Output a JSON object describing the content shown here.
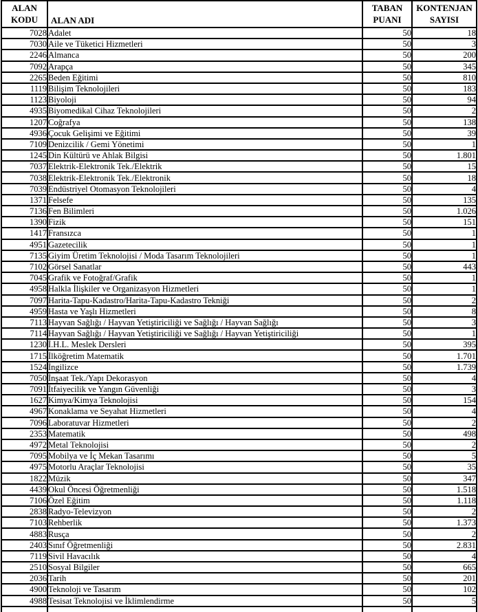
{
  "table": {
    "columns": {
      "alan_kodu": {
        "line1": "ALAN",
        "line2": "KODU"
      },
      "alan_adi": {
        "label": "ALAN ADI"
      },
      "taban_puani": {
        "line1": "TABAN",
        "line2": "PUANI"
      },
      "kontenjan_sayisi": {
        "line1": "KONTENJAN",
        "line2": "SAYISI"
      }
    },
    "rows": [
      {
        "code": "7028",
        "name": "Adalet",
        "score": "50",
        "quota": "18"
      },
      {
        "code": "7030",
        "name": "Aile ve Tüketici Hizmetleri",
        "score": "50",
        "quota": "3"
      },
      {
        "code": "2246",
        "name": "Almanca",
        "score": "50",
        "quota": "200"
      },
      {
        "code": "7092",
        "name": "Arapça",
        "score": "50",
        "quota": "345"
      },
      {
        "code": "2265",
        "name": "Beden Eğitimi",
        "score": "50",
        "quota": "810"
      },
      {
        "code": "1119",
        "name": "Bilişim Teknolojileri",
        "score": "50",
        "quota": "183"
      },
      {
        "code": "1123",
        "name": "Biyoloji",
        "score": "50",
        "quota": "94"
      },
      {
        "code": "4935",
        "name": "Biyomedikal Cihaz Teknolojileri",
        "score": "50",
        "quota": "2"
      },
      {
        "code": "1207",
        "name": "Coğrafya",
        "score": "50",
        "quota": "138"
      },
      {
        "code": "4936",
        "name": "Çocuk Gelişimi ve Eğitimi",
        "score": "50",
        "quota": "39"
      },
      {
        "code": "7109",
        "name": "Denizcilik / Gemi Yönetimi",
        "score": "50",
        "quota": "1"
      },
      {
        "code": "1245",
        "name": "Din Kültürü ve Ahlak Bilgisi",
        "score": "50",
        "quota": "1.801"
      },
      {
        "code": "7037",
        "name": "Elektrik-Elektronik Tek./Elektrik",
        "score": "50",
        "quota": "15"
      },
      {
        "code": "7038",
        "name": "Elektrik-Elektronik Tek./Elektronik",
        "score": "50",
        "quota": "18"
      },
      {
        "code": "7039",
        "name": "Endüstriyel Otomasyon Teknolojileri",
        "score": "50",
        "quota": "4"
      },
      {
        "code": "1371",
        "name": "Felsefe",
        "score": "50",
        "quota": "135"
      },
      {
        "code": "7136",
        "name": "Fen Bilimleri",
        "score": "50",
        "quota": "1.026"
      },
      {
        "code": "1390",
        "name": "Fizik",
        "score": "50",
        "quota": "151"
      },
      {
        "code": "1417",
        "name": "Fransızca",
        "score": "50",
        "quota": "1"
      },
      {
        "code": "4951",
        "name": "Gazetecilik",
        "score": "50",
        "quota": "1"
      },
      {
        "code": "7135",
        "name": "Giyim Üretim Teknolojisi / Moda Tasarım Teknolojileri",
        "score": "50",
        "quota": "1"
      },
      {
        "code": "7102",
        "name": "Görsel Sanatlar",
        "score": "50",
        "quota": "443"
      },
      {
        "code": "7045",
        "name": "Grafik ve Fotoğraf/Grafik",
        "score": "50",
        "quota": "1"
      },
      {
        "code": "4958",
        "name": "Halkla İlişkiler ve Organizasyon Hizmetleri",
        "score": "50",
        "quota": "1"
      },
      {
        "code": "7097",
        "name": "Harita-Tapu-Kadastro/Harita-Tapu-Kadastro Tekniği",
        "score": "50",
        "quota": "2"
      },
      {
        "code": "4959",
        "name": "Hasta ve Yaşlı Hizmetleri",
        "score": "50",
        "quota": "8"
      },
      {
        "code": "7113",
        "name": "Hayvan Sağlığı / Hayvan Yetiştiriciliği ve Sağlığı / Hayvan Sağlığı",
        "score": "50",
        "quota": "3"
      },
      {
        "code": "7114",
        "name": "Hayvan Sağlığı / Hayvan Yetiştiriciliği ve Sağlığı / Hayvan Yetiştiriciliği",
        "score": "50",
        "quota": "1"
      },
      {
        "code": "1230",
        "name": "İ.H.L. Meslek Dersleri",
        "score": "50",
        "quota": "395"
      },
      {
        "code": "1715",
        "name": "İlköğretim Matematik",
        "score": "50",
        "quota": "1.701"
      },
      {
        "code": "1524",
        "name": "İngilizce",
        "score": "50",
        "quota": "1.739"
      },
      {
        "code": "7050",
        "name": "İnşaat Tek./Yapı Dekorasyon",
        "score": "50",
        "quota": "4"
      },
      {
        "code": "7091",
        "name": "İtfaiyecilik ve Yangın Güvenliği",
        "score": "50",
        "quota": "3"
      },
      {
        "code": "1627",
        "name": "Kimya/Kimya Teknolojisi",
        "score": "50",
        "quota": "154"
      },
      {
        "code": "4967",
        "name": "Konaklama ve Seyahat Hizmetleri",
        "score": "50",
        "quota": "4"
      },
      {
        "code": "7096",
        "name": "Laboratuvar Hizmetleri",
        "score": "50",
        "quota": "2"
      },
      {
        "code": "2353",
        "name": "Matematik",
        "score": "50",
        "quota": "498"
      },
      {
        "code": "4972",
        "name": "Metal Teknolojisi",
        "score": "50",
        "quota": "2"
      },
      {
        "code": "7095",
        "name": "Mobilya ve İç Mekan Tasarımı",
        "score": "50",
        "quota": "5"
      },
      {
        "code": "4975",
        "name": "Motorlu Araçlar Teknolojisi",
        "score": "50",
        "quota": "35"
      },
      {
        "code": "1822",
        "name": "Müzik",
        "score": "50",
        "quota": "347"
      },
      {
        "code": "4439",
        "name": "Okul Öncesi Öğretmenliği",
        "score": "50",
        "quota": "1.518"
      },
      {
        "code": "7106",
        "name": "Özel Eğitim",
        "score": "50",
        "quota": "1.118"
      },
      {
        "code": "2838",
        "name": "Radyo-Televizyon",
        "score": "50",
        "quota": "2"
      },
      {
        "code": "7103",
        "name": "Rehberlik",
        "score": "50",
        "quota": "1.373"
      },
      {
        "code": "4883",
        "name": "Rusça",
        "score": "50",
        "quota": "2"
      },
      {
        "code": "2403",
        "name": "Sınıf Öğretmenliği",
        "score": "50",
        "quota": "2.831"
      },
      {
        "code": "7119",
        "name": "Sivil Havacılık",
        "score": "50",
        "quota": "4"
      },
      {
        "code": "2510",
        "name": "Sosyal Bilgiler",
        "score": "50",
        "quota": "665"
      },
      {
        "code": "2036",
        "name": "Tarih",
        "score": "50",
        "quota": "201"
      },
      {
        "code": "4900",
        "name": "Teknoloji ve Tasarım",
        "score": "50",
        "quota": "102"
      },
      {
        "code": "4988",
        "name": "Tesisat Teknolojisi ve İklimlendirme",
        "score": "50",
        "quota": "5"
      }
    ]
  }
}
